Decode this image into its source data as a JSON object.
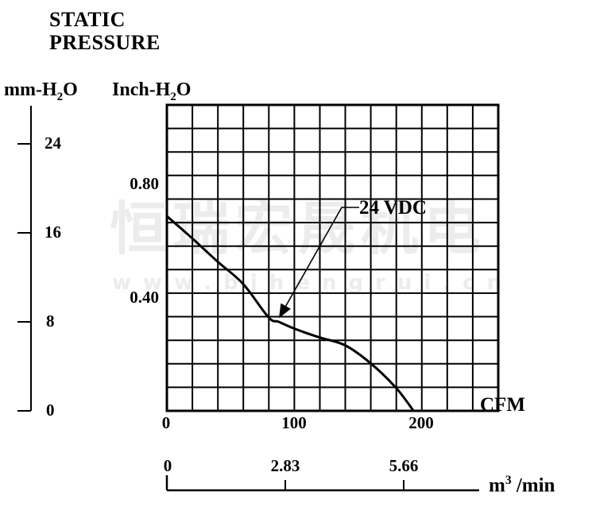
{
  "title": {
    "line1": "STATIC",
    "line2": "PRESSURE"
  },
  "y_axis_primary": {
    "label_parts": {
      "pre": "mm-H",
      "sub": "2",
      "post": "O"
    },
    "tick_labels": [
      "24",
      "16",
      "8",
      "0"
    ]
  },
  "y_axis_secondary": {
    "label_parts": {
      "pre": "Inch-H",
      "sub": "2",
      "post": "O"
    },
    "tick_labels": [
      "0.80",
      "0.40"
    ]
  },
  "x_axis_primary": {
    "unit": "CFM",
    "tick_labels": [
      "0",
      "100",
      "200"
    ]
  },
  "x_axis_secondary": {
    "unit_parts": {
      "pre": "m",
      "sup": "3",
      "post": " /min"
    },
    "tick_labels": [
      "0",
      "2.83",
      "5.66"
    ]
  },
  "curve_annotation": {
    "label": "24 VDC"
  },
  "watermark": {
    "cjk": "恒瑞宏晟机电",
    "url": "www.bjhengrui.cn"
  },
  "colors": {
    "ink": "#000000",
    "watermark": "#ececec",
    "background": "#ffffff"
  },
  "chart_data": {
    "type": "line",
    "title": "STATIC PRESSURE",
    "xlabel": "CFM",
    "x2label": "m3/min",
    "ylabel": "mm-H2O",
    "y2label": "Inch-H2O",
    "xlim_cfm": [
      0,
      260
    ],
    "ylim_mm": [
      0,
      27.5
    ],
    "x_ticks_cfm": [
      0,
      100,
      200
    ],
    "x2_ticks_m3min": [
      0,
      2.83,
      5.66
    ],
    "y_ticks_mm": [
      0,
      8,
      16,
      24
    ],
    "y2_ticks_inch": [
      0.4,
      0.8
    ],
    "grid": {
      "cols": 13,
      "rows": 13,
      "on": true
    },
    "legend_position": "inline-annotation",
    "series": [
      {
        "name": "24 VDC",
        "x_cfm": [
          0,
          20,
          40,
          60,
          80,
          88,
          100,
          120,
          140,
          160,
          180,
          194
        ],
        "y_mm": [
          17.5,
          15.5,
          13.4,
          11.4,
          8.4,
          8.0,
          7.4,
          6.6,
          5.9,
          4.3,
          2.1,
          0
        ]
      }
    ],
    "annotation": {
      "text": "24 VDC",
      "arrow_target_cfm": 88,
      "arrow_target_mm": 8.0
    }
  }
}
